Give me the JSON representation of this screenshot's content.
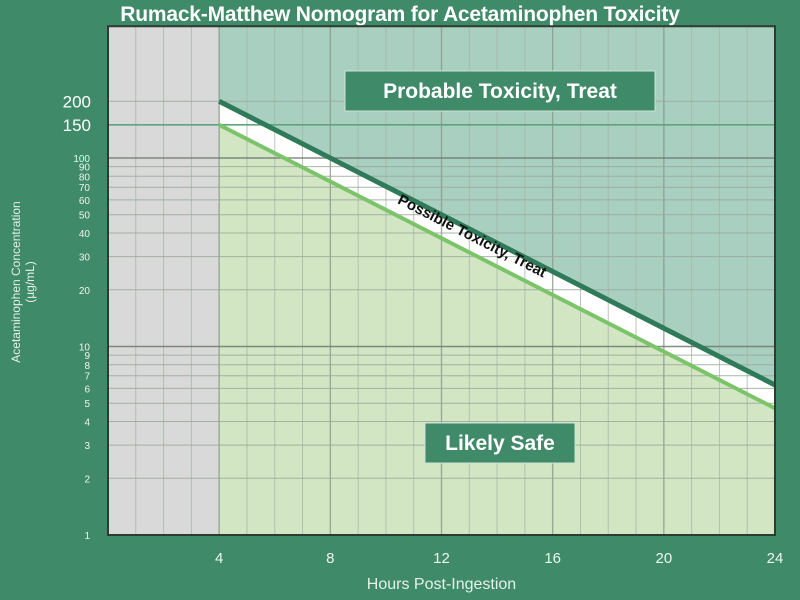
{
  "chart_data": {
    "type": "line",
    "title": "Rumack-Matthew Nomogram for Acetaminophen Toxicity",
    "xlabel": "Hours Post-Ingestion",
    "ylabel": "Acetaminophen Concentration",
    "ylabel_unit": "(µg/mL)",
    "xlim": [
      0,
      24
    ],
    "ylim": [
      1,
      500
    ],
    "yscale": "log",
    "grid": true,
    "x_ticks": [
      4,
      8,
      12,
      16,
      20,
      24
    ],
    "y_ticks_major": [
      150,
      200
    ],
    "y_ticks_minor": [
      1,
      2,
      3,
      4,
      5,
      6,
      7,
      8,
      9,
      10,
      20,
      30,
      40,
      50,
      60,
      70,
      80,
      90,
      100
    ],
    "series": [
      {
        "x": [
          4,
          24
        ],
        "y": [
          200,
          6.25
        ],
        "color": "#2e7a59"
      },
      {
        "x": [
          4,
          24
        ],
        "y": [
          150,
          4.7
        ],
        "color": "#7cc46a"
      }
    ],
    "regions": [
      {
        "label": "Probable Toxicity, Treat",
        "color": "#a8cfc0"
      },
      {
        "label": "Possible Toxicity, Treat",
        "color": "#ffffff"
      },
      {
        "label": "Likely Safe",
        "color": "#d2e6c4"
      }
    ],
    "pre_4h_color": "#d9d9d9",
    "background": "#3f8a68"
  }
}
